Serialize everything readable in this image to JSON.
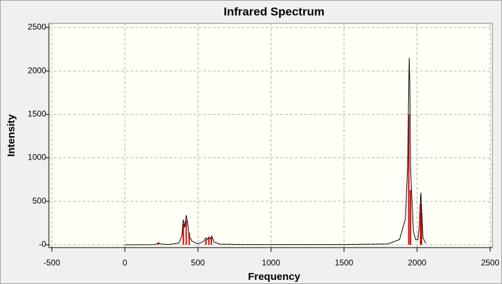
{
  "chart_data": {
    "type": "line",
    "title": "Infrared Spectrum",
    "x_label": "Frequency",
    "y_label": "Intensity",
    "xlim": [
      -520,
      2515
    ],
    "ylim": [
      -32,
      2547
    ],
    "xticks": [
      -500,
      0,
      500,
      1000,
      1500,
      2000,
      2500
    ],
    "yticks": [
      {
        "value": 0,
        "label": "-0"
      },
      500,
      1000,
      1500,
      2000,
      2500
    ],
    "grid": true,
    "series": [
      {
        "style": "stick",
        "color": "#dd0000",
        "x": [
          230,
          400,
          420,
          440,
          555,
          575,
          592,
          1943,
          1955,
          2024,
          2030
        ],
        "values": [
          20,
          240,
          280,
          140,
          60,
          75,
          80,
          1500,
          630,
          470,
          360
        ]
      },
      {
        "style": "line",
        "color": "#000000",
        "x": [
          0,
          200,
          220,
          230,
          240,
          300,
          370,
          390,
          400,
          410,
          420,
          430,
          440,
          460,
          500,
          540,
          555,
          565,
          575,
          585,
          595,
          610,
          650,
          800,
          1500,
          1800,
          1880,
          1920,
          1935,
          1942,
          1946,
          1950,
          1955,
          1962,
          1975,
          1990,
          2005,
          2015,
          2022,
          2026,
          2030,
          2040,
          2060
        ],
        "values": [
          0,
          2,
          10,
          25,
          10,
          3,
          20,
          100,
          290,
          200,
          340,
          250,
          100,
          40,
          10,
          40,
          80,
          60,
          90,
          70,
          100,
          30,
          8,
          3,
          3,
          10,
          60,
          300,
          900,
          1700,
          2150,
          1850,
          900,
          600,
          150,
          60,
          60,
          200,
          500,
          600,
          450,
          80,
          15
        ]
      }
    ]
  }
}
